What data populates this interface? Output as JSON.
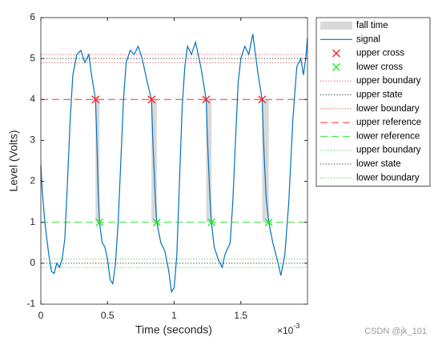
{
  "chart_data": {
    "type": "line",
    "xlabel": "Time (seconds)",
    "ylabel": "Level (Volts)",
    "x_multiplier": {
      "base": "×10",
      "exponent": "-3"
    },
    "watermark": "CSDN @jk_101",
    "xlim": [
      0,
      0.002
    ],
    "xticks": [
      0,
      {
        "value": 0.0005,
        "label": "0.5"
      },
      {
        "value": 0.001,
        "label": "1"
      },
      {
        "value": 0.0015,
        "label": "1.5"
      }
    ],
    "ylim": [
      -1,
      6
    ],
    "yticks": [
      -1,
      0,
      1,
      2,
      3,
      4,
      5,
      6
    ],
    "legend": "outside-right-top",
    "series": [
      {
        "name": "fall time",
        "kind": "span",
        "color": "#d9d9d9",
        "x": [
          0.00041,
          0.00083,
          0.00124,
          0.00166
        ],
        "x_end": [
          0.00044,
          0.00087,
          0.00128,
          0.00171
        ],
        "values": [
          4,
          4,
          4,
          4
        ],
        "bottom": [
          1,
          1,
          1,
          1
        ]
      },
      {
        "name": "signal",
        "kind": "line",
        "color": "#0072bd",
        "style": "solid",
        "x": [
          0,
          1e-05,
          3e-05,
          6e-05,
          8e-05,
          0.0001,
          0.00012,
          0.00014,
          0.00016,
          0.00018,
          0.0002,
          0.00022,
          0.00024,
          0.00027,
          0.0003,
          0.00033,
          0.00036,
          0.00038,
          0.0004,
          0.00041,
          0.00042,
          0.00043,
          0.00044,
          0.00046,
          0.00048,
          0.0005,
          0.00052,
          0.00054,
          0.00056,
          0.00058,
          0.0006,
          0.00062,
          0.00064,
          0.00067,
          0.0007,
          0.00073,
          0.00076,
          0.0008,
          0.00083,
          0.00084,
          0.00086,
          0.00087,
          0.0009,
          0.00093,
          0.00096,
          0.00098,
          0.001,
          0.00102,
          0.00104,
          0.00106,
          0.00108,
          0.0011,
          0.00113,
          0.00116,
          0.0012,
          0.00124,
          0.00125,
          0.00127,
          0.00128,
          0.0013,
          0.00133,
          0.00136,
          0.00138,
          0.00142,
          0.00144,
          0.00146,
          0.00148,
          0.0015,
          0.00153,
          0.00156,
          0.00159,
          0.00163,
          0.00166,
          0.00167,
          0.00169,
          0.00171,
          0.00174,
          0.00178,
          0.0018,
          0.00183,
          0.00186,
          0.00189,
          0.00192,
          0.00195,
          0.00197,
          0.00199,
          0.002
        ],
        "values": [
          2.4,
          1.8,
          1.0,
          0.2,
          -0.2,
          -0.25,
          0.0,
          -0.1,
          0.1,
          0.6,
          2.0,
          3.5,
          4.6,
          5.1,
          5.2,
          4.9,
          5.1,
          4.6,
          4.2,
          4.0,
          3.0,
          1.8,
          1.0,
          0.5,
          0.4,
          0.1,
          -0.4,
          -0.5,
          0.0,
          1.0,
          2.5,
          4.0,
          4.9,
          5.2,
          5.1,
          5.3,
          5.0,
          4.4,
          4.0,
          3.0,
          1.5,
          1.0,
          0.5,
          0.3,
          -0.2,
          -0.7,
          -0.6,
          0.2,
          2.0,
          3.8,
          4.8,
          5.3,
          5.1,
          5.4,
          4.8,
          4.0,
          3.0,
          1.5,
          1.0,
          0.4,
          0.1,
          -0.1,
          0.2,
          0.5,
          1.5,
          3.0,
          4.4,
          5.0,
          5.3,
          5.1,
          5.6,
          4.6,
          4.0,
          3.0,
          1.6,
          1.0,
          0.5,
          0.0,
          -0.3,
          0.2,
          1.5,
          3.5,
          4.8,
          5.0,
          4.6,
          5.1,
          5.5
        ]
      },
      {
        "name": "upper cross",
        "kind": "marker",
        "color": "#ff2020",
        "x": [
          0.00041,
          0.00083,
          0.00124,
          0.00166
        ],
        "values": [
          4,
          4,
          4,
          4
        ]
      },
      {
        "name": "lower cross",
        "kind": "marker",
        "color": "#20ee20",
        "x": [
          0.00044,
          0.00087,
          0.00128,
          0.00171
        ],
        "values": [
          1,
          1,
          1,
          1
        ]
      },
      {
        "name": "upper boundary",
        "kind": "hline",
        "color": "#e05050",
        "style": "dotted",
        "values": [
          5.1
        ]
      },
      {
        "name": "upper state",
        "kind": "hline",
        "color": "#333333",
        "style": "dotted",
        "values": [
          5.0
        ]
      },
      {
        "name": "lower boundary",
        "kind": "hline",
        "color": "#e05050",
        "style": "dotted",
        "values": [
          4.9
        ]
      },
      {
        "name": "upper reference",
        "kind": "hline",
        "color": "#ff3030",
        "style": "dashed",
        "values": [
          4
        ]
      },
      {
        "name": "lower reference",
        "kind": "hline",
        "color": "#30e030",
        "style": "dashed",
        "values": [
          1
        ]
      },
      {
        "name": "upper boundary",
        "kind": "hline",
        "color": "#40d040",
        "style": "dotted",
        "values": [
          0.1
        ]
      },
      {
        "name": "lower state",
        "kind": "hline",
        "color": "#333333",
        "style": "dotted",
        "values": [
          0
        ]
      },
      {
        "name": "lower boundary",
        "kind": "hline",
        "color": "#40d040",
        "style": "dotted",
        "values": [
          -0.1
        ]
      }
    ]
  }
}
